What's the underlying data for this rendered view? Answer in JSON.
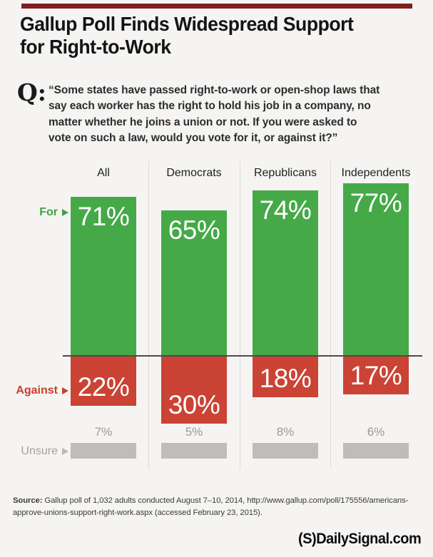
{
  "page": {
    "title_lines": [
      "Gallup Poll Finds Widespread Support",
      "for Right-to-Work"
    ],
    "accent_color": "#7e1e1e"
  },
  "question": {
    "label": "Q:",
    "lines": [
      "“Some states have passed right-to-work or open-shop laws that",
      "say each worker has the right to hold his job in a company, no",
      "matter whether he joins a union or not. If you were asked to",
      "vote on such a law, would you vote for it, or against it?”"
    ]
  },
  "chart_data": {
    "type": "bar",
    "title": "",
    "categories": [
      "All",
      "Democrats",
      "Republicans",
      "Independents"
    ],
    "series": [
      {
        "name": "For",
        "values": [
          71,
          65,
          74,
          77
        ],
        "color": "#45a948",
        "label_color": "#3ea143"
      },
      {
        "name": "Against",
        "values": [
          22,
          30,
          18,
          17
        ],
        "color": "#cb4334",
        "label_color": "#c6402f"
      },
      {
        "name": "Unsure",
        "values": [
          7,
          5,
          8,
          6
        ],
        "color": "#c0bcbc",
        "label_color": "#a5a1a1"
      }
    ],
    "unit": "%",
    "layout": "diverging columns: For above baseline, Against below baseline, Unsure as fixed-height gray strip with value above",
    "axis": {
      "baseline_color": "#4b4b4b",
      "divider_color": "#dcdcda"
    },
    "legend_position": "left row labels with arrows"
  },
  "source": {
    "label": "Source:",
    "lines": [
      " Gallup poll of 1,032 adults conducted August 7–10, 2014, http://www.gallup.com/poll/175556/americans-",
      "approve-unions-support-right-work.aspx (accessed February 23, 2015)."
    ]
  },
  "footer": {
    "logo_mark": "(S)",
    "logo_text": "DailySignal.com"
  }
}
